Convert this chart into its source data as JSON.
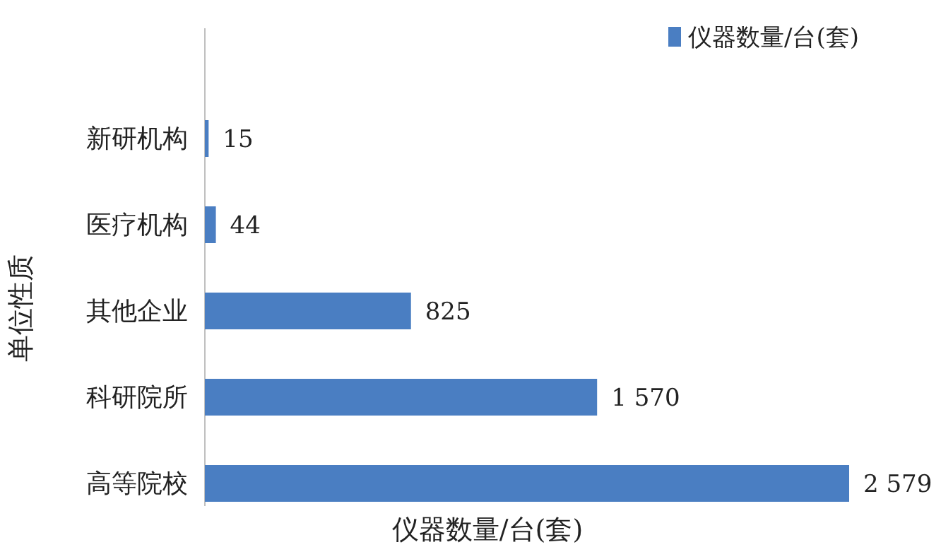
{
  "chart_data": {
    "type": "bar",
    "orientation": "horizontal",
    "xlabel": "仪器数量/台(套)",
    "ylabel": "单位性质",
    "legend": "top right",
    "categories": [
      "新研机构",
      "医疗机构",
      "其他企业",
      "科研院所",
      "高等院校"
    ],
    "series": [
      {
        "name": "仪器数量/台(套)",
        "color": "#4a7ec2",
        "values": [
          15,
          44,
          825,
          1570,
          2579
        ],
        "value_labels": [
          "15",
          "44",
          "825",
          "1 570",
          "2 579"
        ]
      }
    ]
  }
}
